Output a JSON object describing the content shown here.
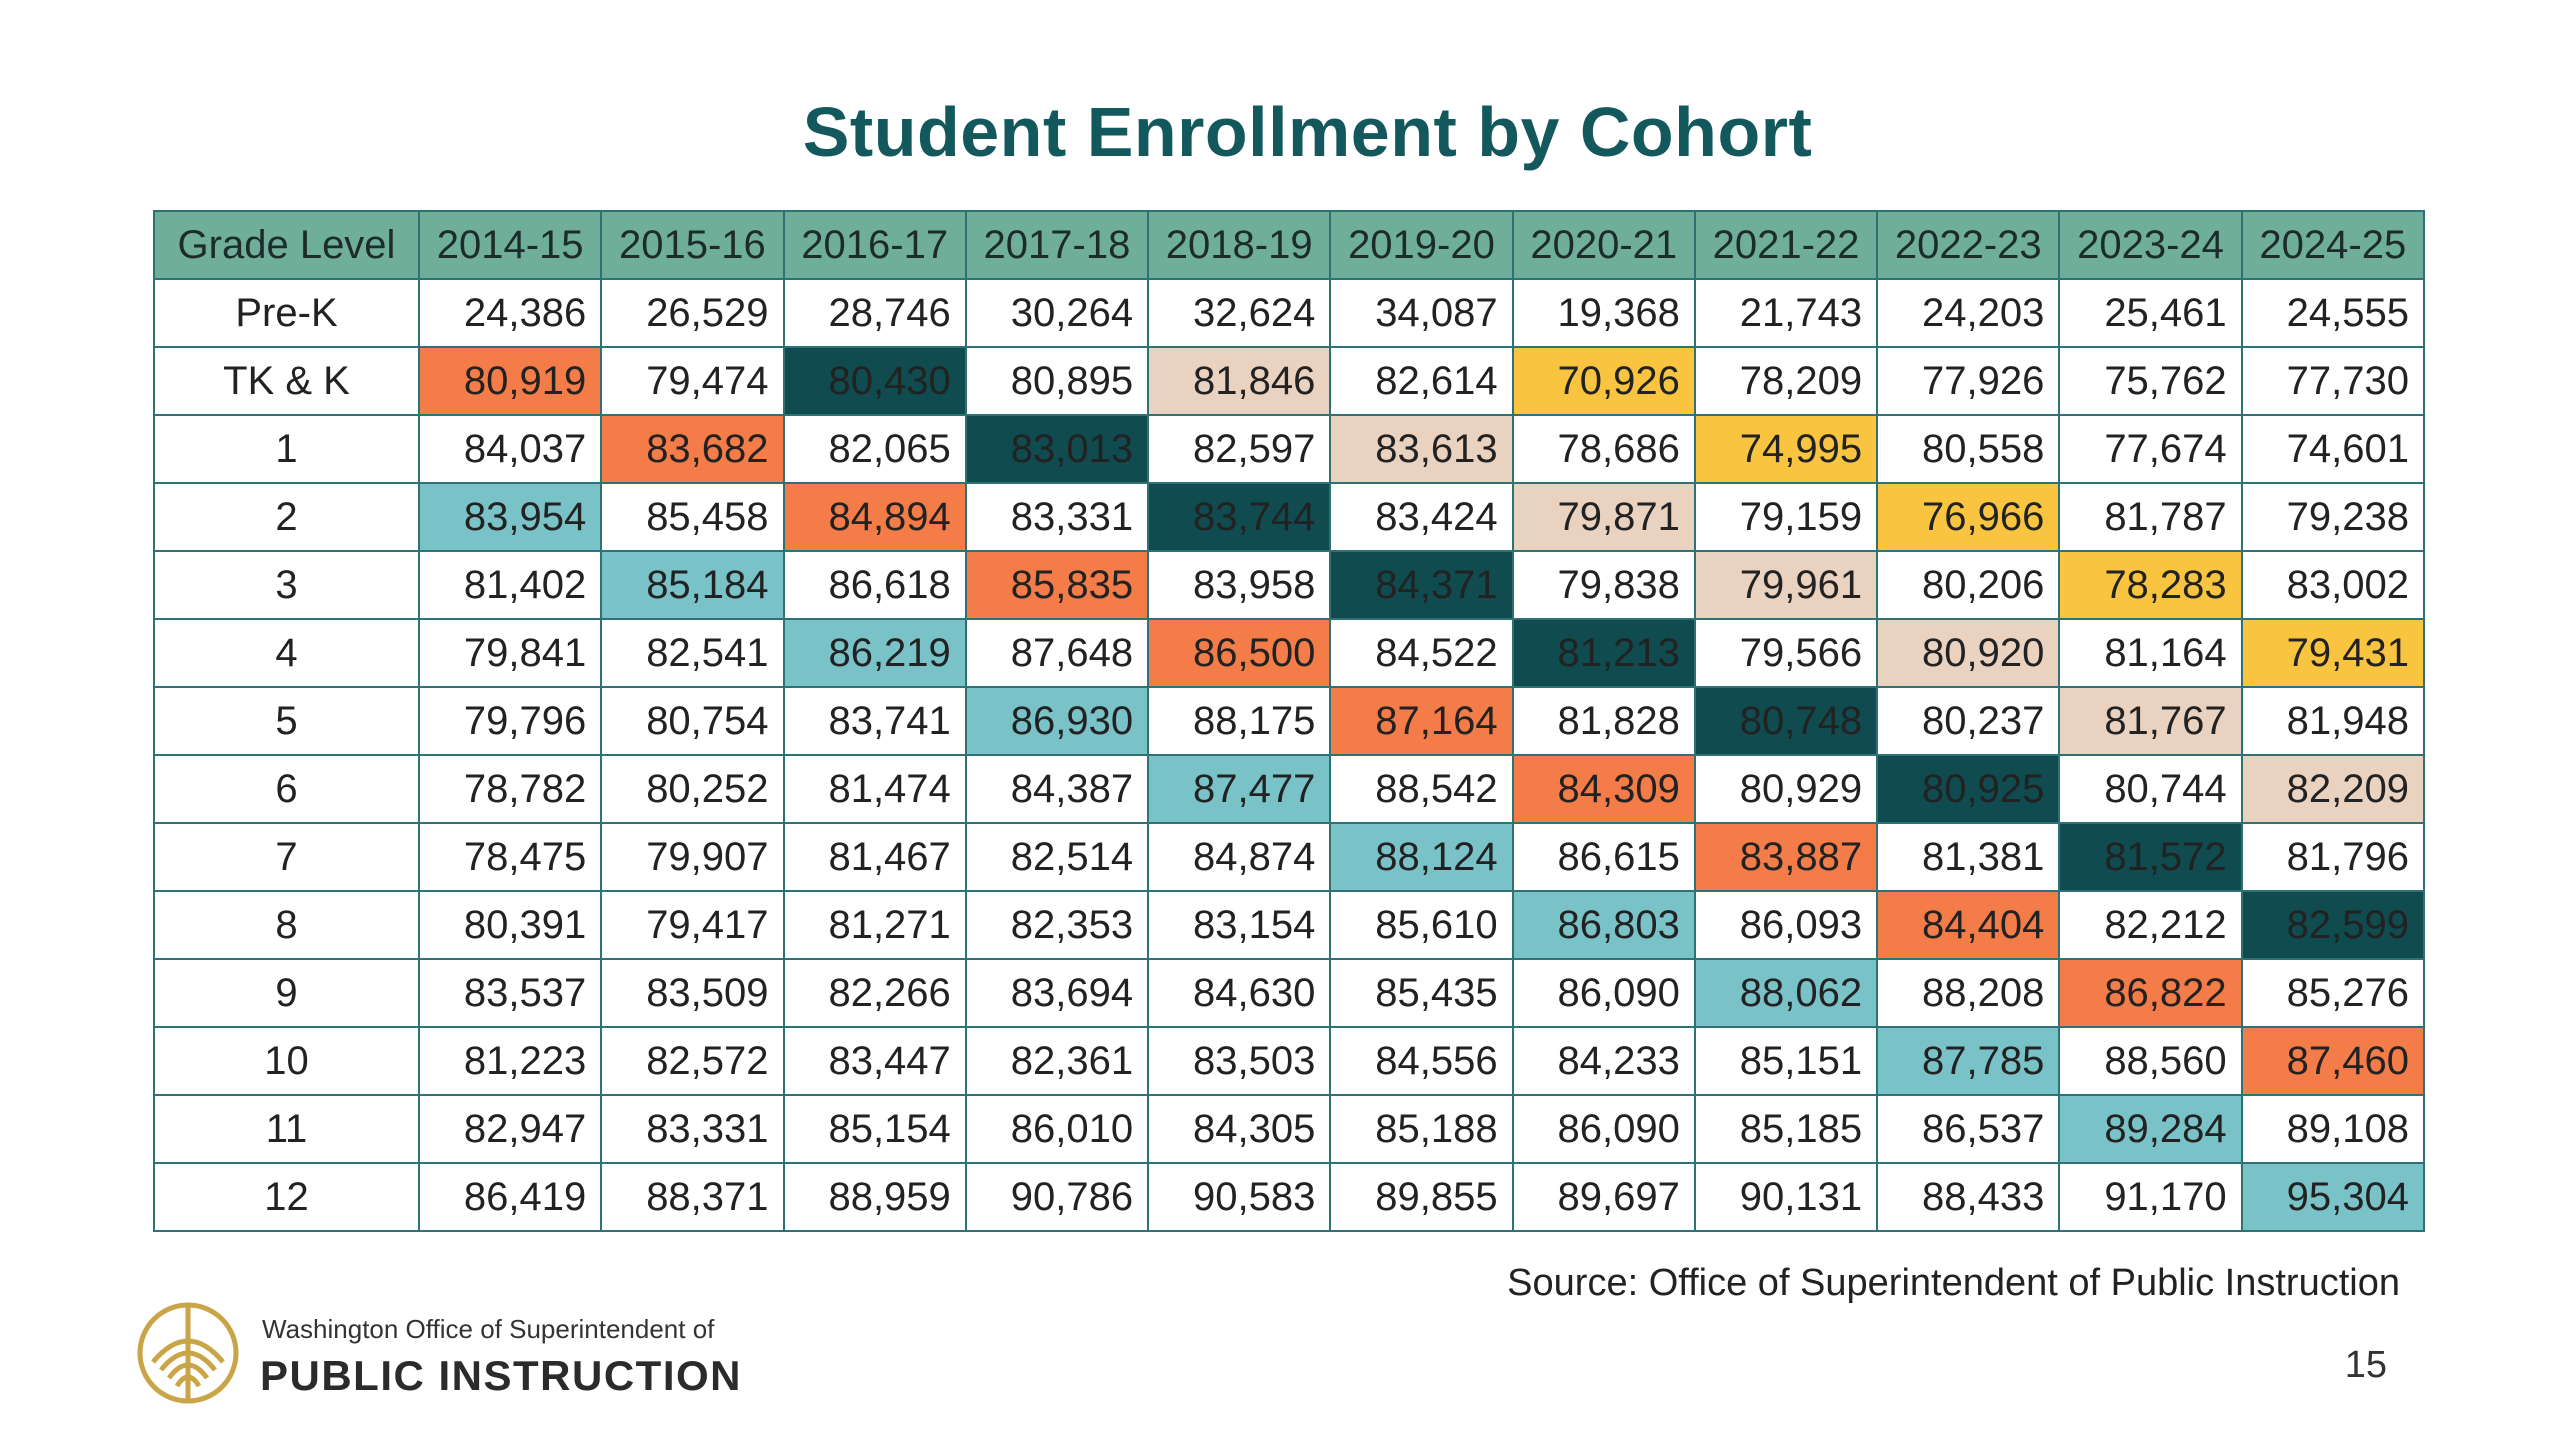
{
  "title": "Student Enrollment by Cohort",
  "table": {
    "header_label": "Grade Level",
    "years": [
      "2014-15",
      "2015-16",
      "2016-17",
      "2017-18",
      "2018-19",
      "2019-20",
      "2020-21",
      "2021-22",
      "2022-23",
      "2023-24",
      "2024-25"
    ],
    "rows": [
      {
        "grade": "Pre-K",
        "values": [
          "24,386",
          "26,529",
          "28,746",
          "30,264",
          "32,624",
          "34,087",
          "19,368",
          "21,743",
          "24,203",
          "25,461",
          "24,555"
        ]
      },
      {
        "grade": "TK & K",
        "values": [
          "80,919",
          "79,474",
          "80,430",
          "80,895",
          "81,846",
          "82,614",
          "70,926",
          "78,209",
          "77,926",
          "75,762",
          "77,730"
        ]
      },
      {
        "grade": "1",
        "values": [
          "84,037",
          "83,682",
          "82,065",
          "83,013",
          "82,597",
          "83,613",
          "78,686",
          "74,995",
          "80,558",
          "77,674",
          "74,601"
        ]
      },
      {
        "grade": "2",
        "values": [
          "83,954",
          "85,458",
          "84,894",
          "83,331",
          "83,744",
          "83,424",
          "79,871",
          "79,159",
          "76,966",
          "81,787",
          "79,238"
        ]
      },
      {
        "grade": "3",
        "values": [
          "81,402",
          "85,184",
          "86,618",
          "85,835",
          "83,958",
          "84,371",
          "79,838",
          "79,961",
          "80,206",
          "78,283",
          "83,002"
        ]
      },
      {
        "grade": "4",
        "values": [
          "79,841",
          "82,541",
          "86,219",
          "87,648",
          "86,500",
          "84,522",
          "81,213",
          "79,566",
          "80,920",
          "81,164",
          "79,431"
        ]
      },
      {
        "grade": "5",
        "values": [
          "79,796",
          "80,754",
          "83,741",
          "86,930",
          "88,175",
          "87,164",
          "81,828",
          "80,748",
          "80,237",
          "81,767",
          "81,948"
        ]
      },
      {
        "grade": "6",
        "values": [
          "78,782",
          "80,252",
          "81,474",
          "84,387",
          "87,477",
          "88,542",
          "84,309",
          "80,929",
          "80,925",
          "80,744",
          "82,209"
        ]
      },
      {
        "grade": "7",
        "values": [
          "78,475",
          "79,907",
          "81,467",
          "82,514",
          "84,874",
          "88,124",
          "86,615",
          "83,887",
          "81,381",
          "81,572",
          "81,796"
        ]
      },
      {
        "grade": "8",
        "values": [
          "80,391",
          "79,417",
          "81,271",
          "82,353",
          "83,154",
          "85,610",
          "86,803",
          "86,093",
          "84,404",
          "82,212",
          "82,599"
        ]
      },
      {
        "grade": "9",
        "values": [
          "83,537",
          "83,509",
          "82,266",
          "83,694",
          "84,630",
          "85,435",
          "86,090",
          "88,062",
          "88,208",
          "86,822",
          "85,276"
        ]
      },
      {
        "grade": "10",
        "values": [
          "81,223",
          "82,572",
          "83,447",
          "82,361",
          "83,503",
          "84,556",
          "84,233",
          "85,151",
          "87,785",
          "88,560",
          "87,460"
        ]
      },
      {
        "grade": "11",
        "values": [
          "82,947",
          "83,331",
          "85,154",
          "86,010",
          "84,305",
          "85,188",
          "86,090",
          "85,185",
          "86,537",
          "89,284",
          "89,108"
        ]
      },
      {
        "grade": "12",
        "values": [
          "86,419",
          "88,371",
          "88,959",
          "90,786",
          "90,583",
          "89,855",
          "89,697",
          "90,131",
          "88,433",
          "91,170",
          "95,304"
        ]
      }
    ],
    "highlight_colors": {
      "orange": "#f47c48",
      "teal-dark": "#0f4b4f",
      "tan": "#ead2c0",
      "yellow": "#f9c540",
      "teal-light": "#79c2c8"
    }
  },
  "source": "Source: Office of Superintendent of Public Instruction",
  "page_number": "15",
  "logo": {
    "line1": "Washington Office of Superintendent of",
    "line2": "PUBLIC INSTRUCTION",
    "icon": "ospi-seal-icon",
    "color": "#c9a548"
  }
}
